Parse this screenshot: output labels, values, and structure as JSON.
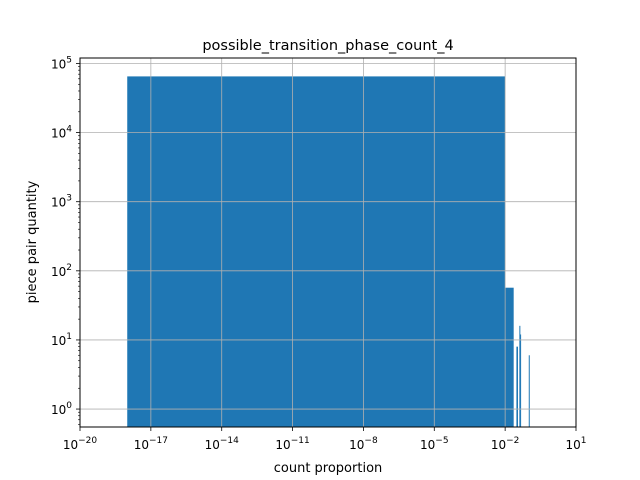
{
  "chart_data": {
    "type": "bar",
    "title": "possible_transition_phase_count_4",
    "xlabel": "count proportion",
    "ylabel": "piece pair quantity",
    "x_scale": "log",
    "y_scale": "log",
    "xlim": [
      1e-20,
      10
    ],
    "ylim": [
      0.55,
      120000
    ],
    "grid": true,
    "color": "#1f77b4",
    "x_ticks": [
      {
        "value": 1e-20,
        "base": "10",
        "exp": "−20"
      },
      {
        "value": 1e-17,
        "base": "10",
        "exp": "−17"
      },
      {
        "value": 1e-14,
        "base": "10",
        "exp": "−14"
      },
      {
        "value": 1e-11,
        "base": "10",
        "exp": "−11"
      },
      {
        "value": 1e-08,
        "base": "10",
        "exp": "−8"
      },
      {
        "value": 1e-05,
        "base": "10",
        "exp": "−5"
      },
      {
        "value": 0.01,
        "base": "10",
        "exp": "−2"
      },
      {
        "value": 10,
        "base": "10",
        "exp": "1"
      }
    ],
    "y_ticks": [
      {
        "value": 1,
        "base": "10",
        "exp": "0"
      },
      {
        "value": 10,
        "base": "10",
        "exp": "1"
      },
      {
        "value": 100,
        "base": "10",
        "exp": "2"
      },
      {
        "value": 1000,
        "base": "10",
        "exp": "3"
      },
      {
        "value": 10000,
        "base": "10",
        "exp": "4"
      },
      {
        "value": 100000,
        "base": "10",
        "exp": "5"
      }
    ],
    "bins": [
      {
        "x0": 1e-18,
        "x1": 0.01,
        "value": 65000
      },
      {
        "x0": 0.01,
        "x1": 0.023,
        "value": 57
      },
      {
        "x0": 0.03,
        "x1": 0.035,
        "value": 8
      },
      {
        "x0": 0.04,
        "x1": 0.042,
        "value": 16
      },
      {
        "x0": 0.043,
        "x1": 0.046,
        "value": 12
      },
      {
        "x0": 0.1,
        "x1": 0.103,
        "value": 6
      }
    ]
  }
}
